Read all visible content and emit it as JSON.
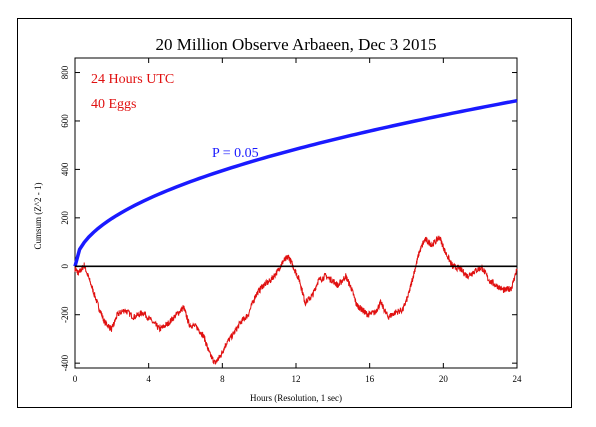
{
  "chart_data": {
    "type": "line",
    "title": "20 Million Observe Arbaeen, Dec 3 2015",
    "xlabel": "Hours (Resolution, 1 sec)",
    "ylabel": "Cumsum (Z^2 - 1)",
    "xlim": [
      0,
      24
    ],
    "ylim": [
      -420,
      860
    ],
    "xticks": [
      0,
      4,
      8,
      12,
      16,
      20,
      24
    ],
    "yticks": [
      -400,
      -200,
      0,
      200,
      400,
      600,
      800
    ],
    "annotations": [
      "24 Hours UTC",
      "40 Eggs",
      "P = 0.05"
    ],
    "series": [
      {
        "role": "p-value envelope",
        "color": "#1a1aff",
        "formula": "1.645*sqrt(2*3600*t)",
        "x": [
          0,
          0.5,
          1,
          2,
          3,
          4,
          6,
          8,
          10,
          12,
          14,
          16,
          18,
          20,
          22,
          24
        ],
        "values": [
          0,
          99,
          140,
          197,
          242,
          279,
          342,
          395,
          441,
          483,
          522,
          558,
          592,
          624,
          655,
          684
        ]
      },
      {
        "role": "cumulative deviation",
        "color": "#e01010",
        "x": [
          0,
          0.2,
          0.5,
          0.8,
          1.2,
          1.6,
          2.0,
          2.3,
          2.7,
          3.2,
          3.7,
          4.2,
          4.6,
          5.0,
          5.5,
          5.9,
          6.2,
          6.6,
          7.0,
          7.3,
          7.6,
          7.9,
          8.2,
          8.6,
          9.0,
          9.4,
          9.8,
          10.2,
          10.6,
          11.0,
          11.3,
          11.6,
          11.9,
          12.2,
          12.5,
          12.9,
          13.2,
          13.6,
          14.0,
          14.3,
          14.7,
          15.0,
          15.3,
          15.6,
          15.9,
          16.3,
          16.6,
          17.0,
          17.4,
          17.8,
          18.1,
          18.4,
          18.7,
          19.0,
          19.4,
          19.8,
          20.1,
          20.5,
          20.9,
          21.3,
          21.7,
          22.1,
          22.5,
          22.9,
          23.3,
          23.7,
          24.0
        ],
        "values": [
          -10,
          -30,
          5,
          -60,
          -150,
          -230,
          -260,
          -200,
          -180,
          -210,
          -190,
          -230,
          -260,
          -240,
          -200,
          -170,
          -240,
          -250,
          -290,
          -360,
          -400,
          -370,
          -320,
          -280,
          -230,
          -200,
          -120,
          -80,
          -60,
          -20,
          20,
          40,
          -10,
          -60,
          -150,
          -120,
          -60,
          -40,
          -60,
          -80,
          -40,
          -90,
          -160,
          -180,
          -200,
          -190,
          -150,
          -210,
          -190,
          -180,
          -120,
          -30,
          60,
          110,
          90,
          120,
          60,
          0,
          -10,
          -40,
          -20,
          -5,
          -60,
          -80,
          -100,
          -90,
          -10
        ]
      },
      {
        "role": "baseline",
        "color": "#000000",
        "x": [
          0,
          24
        ],
        "values": [
          0,
          0
        ]
      }
    ]
  }
}
